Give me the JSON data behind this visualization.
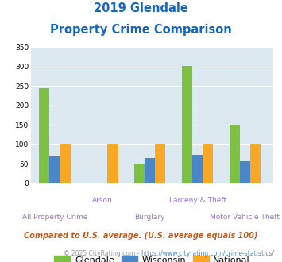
{
  "title_line1": "2019 Glendale",
  "title_line2": "Property Crime Comparison",
  "categories": [
    "All Property Crime",
    "Arson",
    "Burglary",
    "Larceny & Theft",
    "Motor Vehicle Theft"
  ],
  "glendale": [
    245,
    0,
    50,
    302,
    150
  ],
  "wisconsin": [
    70,
    0,
    65,
    73,
    58
  ],
  "national": [
    100,
    100,
    100,
    100,
    100
  ],
  "color_glendale": "#7dc142",
  "color_wisconsin": "#4a86c8",
  "color_national": "#f9a825",
  "color_bg_plot": "#dce9f0",
  "color_title": "#1565c0",
  "color_xlabel": "#9575cd",
  "color_footnote1": "#bf5a1e",
  "color_footnote2": "#999999",
  "color_footnote2_link": "#4a86c8",
  "ylim": [
    0,
    350
  ],
  "yticks": [
    0,
    50,
    100,
    150,
    200,
    250,
    300,
    350
  ],
  "footnote1": "Compared to U.S. average. (U.S. average equals 100)",
  "footnote2a": "© 2025 CityRating.com - ",
  "footnote2b": "https://www.cityrating.com/crime-statistics/",
  "legend_labels": [
    "Glendale",
    "Wisconsin",
    "National"
  ],
  "bar_width": 0.22,
  "group_positions": [
    1,
    2,
    3,
    4,
    5
  ],
  "xlabels_top": [
    "",
    "Arson",
    "",
    "Larceny & Theft",
    ""
  ],
  "xlabels_bot": [
    "All Property Crime",
    "",
    "Burglary",
    "",
    "Motor Vehicle Theft"
  ]
}
